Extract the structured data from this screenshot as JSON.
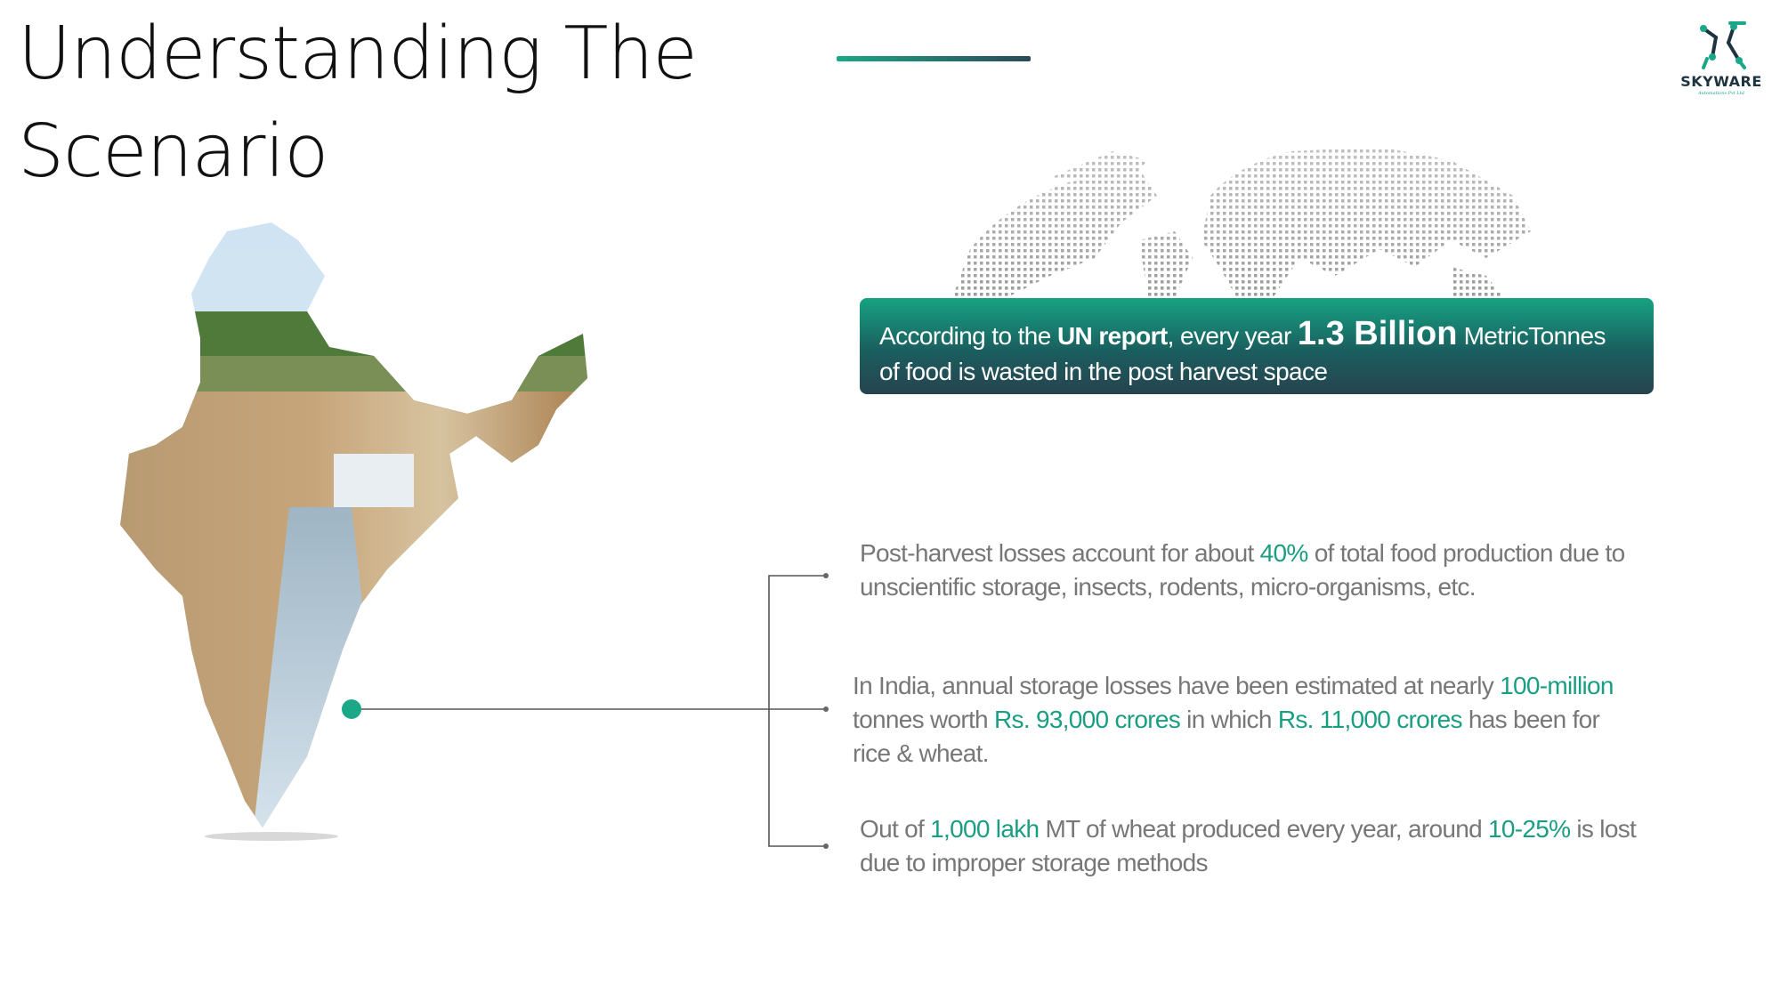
{
  "slide": {
    "title_line1": "Understanding The",
    "title_line2": "Scenario"
  },
  "logo": {
    "name": "SKYWARE",
    "tagline": "Automations Pvt Ltd",
    "icon": "circuit-robot-arm-icon"
  },
  "banner": {
    "p1": "According to the ",
    "b1": "UN report",
    "p2": ", every year ",
    "b2": "1.3 Billion",
    "p3": " MetricTonnes",
    "p4": "of food is wasted in the post harvest space"
  },
  "facts": {
    "fact1": {
      "p1": "Post-harvest losses account for about ",
      "h1": "40%",
      "p2": " of total food production due to unscientific storage, insects, rodents, micro-organisms, etc."
    },
    "fact2": {
      "p1": "In India, annual storage losses have been estimated at nearly ",
      "h1": "100-million",
      "p2": " tonnes worth ",
      "h2": "Rs. 93,000 crores",
      "p3": " in which ",
      "h3": "Rs. 11,000 crores",
      "p4": " has been for rice & wheat."
    },
    "fact3": {
      "p1": "Out of ",
      "h1": "1,000 lakh",
      "p2": " MT of wheat produced every year, around ",
      "h2": "10-25%",
      "p3": " is lost due to improper storage methods"
    }
  },
  "colors": {
    "accent": "#1aa888",
    "dark": "#27434f",
    "text_grey": "#777777"
  }
}
